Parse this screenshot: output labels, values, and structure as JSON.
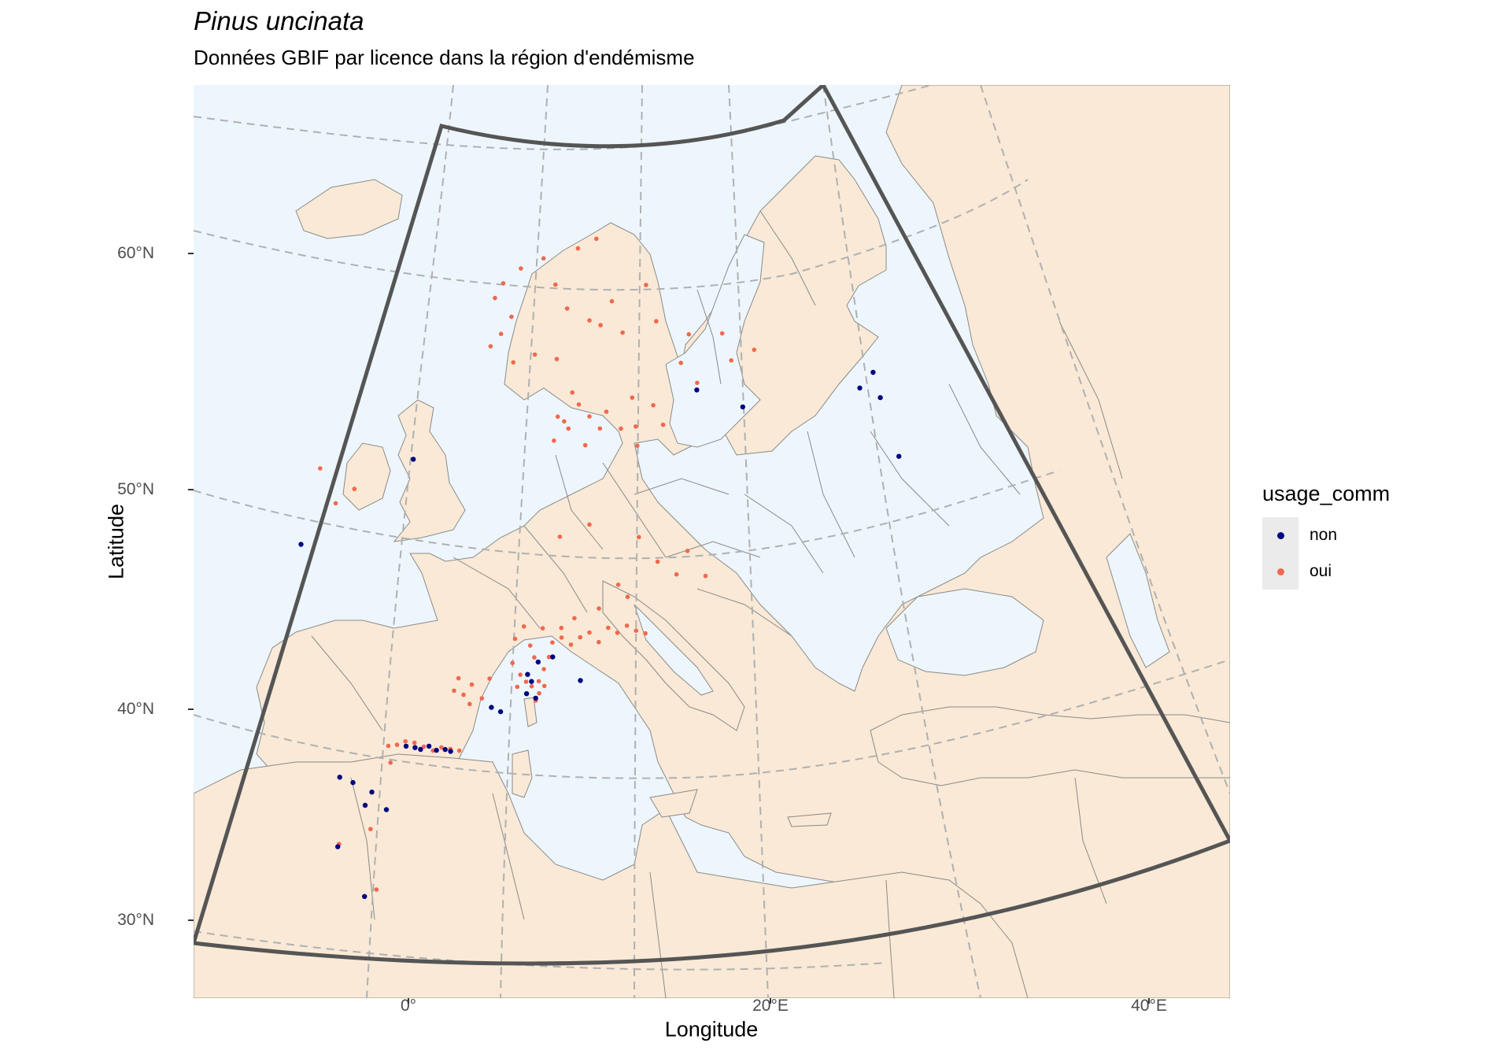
{
  "title": "Pinus uncinata",
  "subtitle": "Données GBIF par licence dans la région d'endémisme",
  "x_axis": {
    "label": "Longitude",
    "ticks": [
      "0°",
      "20°E",
      "40°E"
    ]
  },
  "y_axis": {
    "label": "Latitude",
    "ticks": [
      "60°N",
      "50°N",
      "40°N",
      "30°N"
    ]
  },
  "legend": {
    "title": "usage_comm",
    "items": [
      {
        "label": "non",
        "color": "#000080"
      },
      {
        "label": "oui",
        "color": "#f0684f"
      }
    ]
  },
  "colors": {
    "sea": "#eef6fd",
    "land": "#f9e9d6",
    "border": "#8a8a8a",
    "graticule": "#b0b0b0",
    "frame": "#555555"
  },
  "chart_data": {
    "type": "scatter",
    "series": [
      {
        "name": "oui",
        "color": "#f0684f",
        "points": [
          [
            5.5,
            59.0
          ],
          [
            6.0,
            59.5
          ],
          [
            6.5,
            60.2
          ],
          [
            5.8,
            61.0
          ],
          [
            6.2,
            61.6
          ],
          [
            7.0,
            62.2
          ],
          [
            8.0,
            62.6
          ],
          [
            9.5,
            63.0
          ],
          [
            10.3,
            63.4
          ],
          [
            8.5,
            61.5
          ],
          [
            9.0,
            60.5
          ],
          [
            10.0,
            60.0
          ],
          [
            11.0,
            60.8
          ],
          [
            10.5,
            59.8
          ],
          [
            7.5,
            58.6
          ],
          [
            6.5,
            58.3
          ],
          [
            8.5,
            58.4
          ],
          [
            11.5,
            59.5
          ],
          [
            12.5,
            61.5
          ],
          [
            13.0,
            60.0
          ],
          [
            14.5,
            59.5
          ],
          [
            16.0,
            59.6
          ],
          [
            17.5,
            59.0
          ],
          [
            16.5,
            58.5
          ],
          [
            15.0,
            57.5
          ],
          [
            13.0,
            56.5
          ],
          [
            13.5,
            55.7
          ],
          [
            12.0,
            56.8
          ],
          [
            14.2,
            58.3
          ],
          [
            8.5,
            56.0
          ],
          [
            9.0,
            55.5
          ],
          [
            9.5,
            56.5
          ],
          [
            10.0,
            56.0
          ],
          [
            10.5,
            55.5
          ],
          [
            9.2,
            57.0
          ],
          [
            8.8,
            55.8
          ],
          [
            10.8,
            56.2
          ],
          [
            11.5,
            55.5
          ],
          [
            12.2,
            55.6
          ],
          [
            12.3,
            54.8
          ],
          [
            9.8,
            54.8
          ],
          [
            8.3,
            55.0
          ],
          [
            -3.0,
            54.5
          ],
          [
            -1.5,
            53.5
          ],
          [
            -2.5,
            53.0
          ],
          [
            8.5,
            51.0
          ],
          [
            10.0,
            51.5
          ],
          [
            12.5,
            51.0
          ],
          [
            15.0,
            50.5
          ],
          [
            13.5,
            50.0
          ],
          [
            14.5,
            49.5
          ],
          [
            16.0,
            49.5
          ],
          [
            11.5,
            49.0
          ],
          [
            12.0,
            48.5
          ],
          [
            10.5,
            48.0
          ],
          [
            6.5,
            45.0
          ],
          [
            6.5,
            44.5
          ],
          [
            7.0,
            44.2
          ],
          [
            7.2,
            44.5
          ],
          [
            7.5,
            45.5
          ],
          [
            7.0,
            46.0
          ],
          [
            6.8,
            46.5
          ],
          [
            7.2,
            45.0
          ],
          [
            7.5,
            44.8
          ],
          [
            6.2,
            45.3
          ],
          [
            5.8,
            45.8
          ],
          [
            6.0,
            44.8
          ],
          [
            6.8,
            44.8
          ],
          [
            7.8,
            46.0
          ],
          [
            8.0,
            46.6
          ],
          [
            8.5,
            46.8
          ],
          [
            9.0,
            46.5
          ],
          [
            9.5,
            46.8
          ],
          [
            10.0,
            47.0
          ],
          [
            10.5,
            46.6
          ],
          [
            11.0,
            47.2
          ],
          [
            11.5,
            47.0
          ],
          [
            12.0,
            47.3
          ],
          [
            12.5,
            47.1
          ],
          [
            13.0,
            47.0
          ],
          [
            7.5,
            47.2
          ],
          [
            8.5,
            47.2
          ],
          [
            9.2,
            47.6
          ],
          [
            6.5,
            47.3
          ],
          [
            6.0,
            46.8
          ],
          [
            4.5,
            45.2
          ],
          [
            3.5,
            45.0
          ],
          [
            3.0,
            44.6
          ],
          [
            2.8,
            45.3
          ],
          [
            3.3,
            44.2
          ],
          [
            4.0,
            44.4
          ],
          [
            2.5,
            44.8
          ],
          [
            -1.5,
            42.8
          ],
          [
            -1.0,
            42.8
          ],
          [
            -0.5,
            42.9
          ],
          [
            0.0,
            42.8
          ],
          [
            0.5,
            42.6
          ],
          [
            1.0,
            42.4
          ],
          [
            1.5,
            42.5
          ],
          [
            2.0,
            42.4
          ],
          [
            2.5,
            42.3
          ],
          [
            -1.5,
            42.1
          ],
          [
            -3.2,
            39.5
          ],
          [
            -3.4,
            37.0
          ],
          [
            -5.2,
            39.1
          ]
        ]
      },
      {
        "name": "non",
        "color": "#000080",
        "points": [
          [
            -0.5,
            42.7
          ],
          [
            0.0,
            42.6
          ],
          [
            0.3,
            42.5
          ],
          [
            0.8,
            42.6
          ],
          [
            1.2,
            42.4
          ],
          [
            1.7,
            42.4
          ],
          [
            2.0,
            42.3
          ],
          [
            6.5,
            44.5
          ],
          [
            6.8,
            45.0
          ],
          [
            7.0,
            44.3
          ],
          [
            7.2,
            45.8
          ],
          [
            6.6,
            45.3
          ],
          [
            8.0,
            46.0
          ],
          [
            9.5,
            45.0
          ],
          [
            4.5,
            44.0
          ],
          [
            5.0,
            43.8
          ],
          [
            -3.8,
            41.5
          ],
          [
            -3.3,
            40.5
          ],
          [
            -2.8,
            41.0
          ],
          [
            -2.1,
            40.2
          ],
          [
            -4.5,
            41.8
          ],
          [
            -5.3,
            39.0
          ],
          [
            -4.2,
            36.8
          ],
          [
            -4.5,
            51.5
          ],
          [
            1.5,
            54.5
          ],
          [
            15.0,
            57.2
          ],
          [
            17.2,
            56.6
          ],
          [
            22.5,
            57.8
          ],
          [
            23.0,
            58.5
          ],
          [
            24.8,
            55.2
          ],
          [
            23.5,
            57.5
          ]
        ]
      }
    ],
    "graticule": {
      "lat": [
        30,
        40,
        50,
        60
      ],
      "lon": [
        0,
        20,
        40
      ]
    }
  }
}
